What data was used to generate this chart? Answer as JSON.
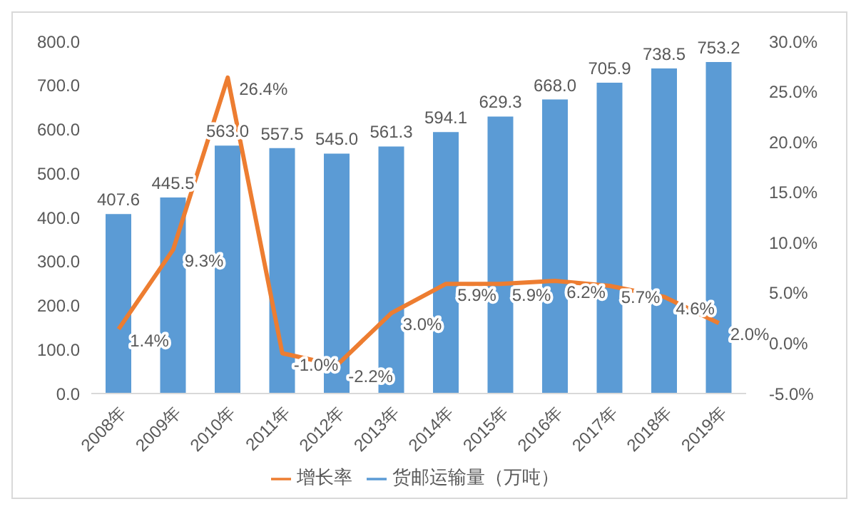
{
  "chart_data": {
    "type": "bar",
    "categories": [
      "2008年",
      "2009年",
      "2010年",
      "2011年",
      "2012年",
      "2013年",
      "2014年",
      "2015年",
      "2016年",
      "2017年",
      "2018年",
      "2019年"
    ],
    "series": [
      {
        "name": "货邮运输量（万吨）",
        "color": "#5b9bd5",
        "values": [
          407.6,
          445.5,
          563.0,
          557.5,
          545.0,
          561.3,
          594.1,
          629.3,
          668.0,
          705.9,
          738.5,
          753.2
        ],
        "value_labels": [
          "407.6",
          "445.5",
          "563.0",
          "557.5",
          "545.0",
          "561.3",
          "594.1",
          "629.3",
          "668.0",
          "705.9",
          "738.5",
          "753.2"
        ]
      },
      {
        "name": "增长率",
        "type": "line",
        "axis": "y2",
        "color": "#ed7d31",
        "values": [
          1.4,
          9.3,
          26.4,
          -1.0,
          -2.2,
          3.0,
          5.9,
          5.9,
          6.2,
          5.7,
          4.6,
          2.0
        ],
        "value_labels": [
          "1.4%",
          "9.3%",
          "26.4%",
          "-1.0%",
          "-2.2%",
          "3.0%",
          "5.9%",
          "5.9%",
          "6.2%",
          "5.7%",
          "4.6%",
          "2.0%"
        ]
      }
    ],
    "ylim": [
      0,
      800
    ],
    "yticks": [
      {
        "value": 0,
        "label": "0.0"
      },
      {
        "value": 100,
        "label": "100.0"
      },
      {
        "value": 200,
        "label": "200.0"
      },
      {
        "value": 300,
        "label": "300.0"
      },
      {
        "value": 400,
        "label": "400.0"
      },
      {
        "value": 500,
        "label": "500.0"
      },
      {
        "value": 600,
        "label": "600.0"
      },
      {
        "value": 700,
        "label": "700.0"
      },
      {
        "value": 800,
        "label": "800.0"
      }
    ],
    "y2lim": [
      -5,
      30
    ],
    "y2ticks": [
      {
        "value": -5,
        "label": "-5.0%"
      },
      {
        "value": 0,
        "label": "0.0%"
      },
      {
        "value": 5,
        "label": "5.0%"
      },
      {
        "value": 10,
        "label": "10.0%"
      },
      {
        "value": 15,
        "label": "15.0%"
      },
      {
        "value": 20,
        "label": "20.0%"
      },
      {
        "value": 25,
        "label": "25.0%"
      },
      {
        "value": 30,
        "label": "30.0%"
      }
    ],
    "legend": "bottom",
    "grid": false,
    "marker": "none"
  }
}
